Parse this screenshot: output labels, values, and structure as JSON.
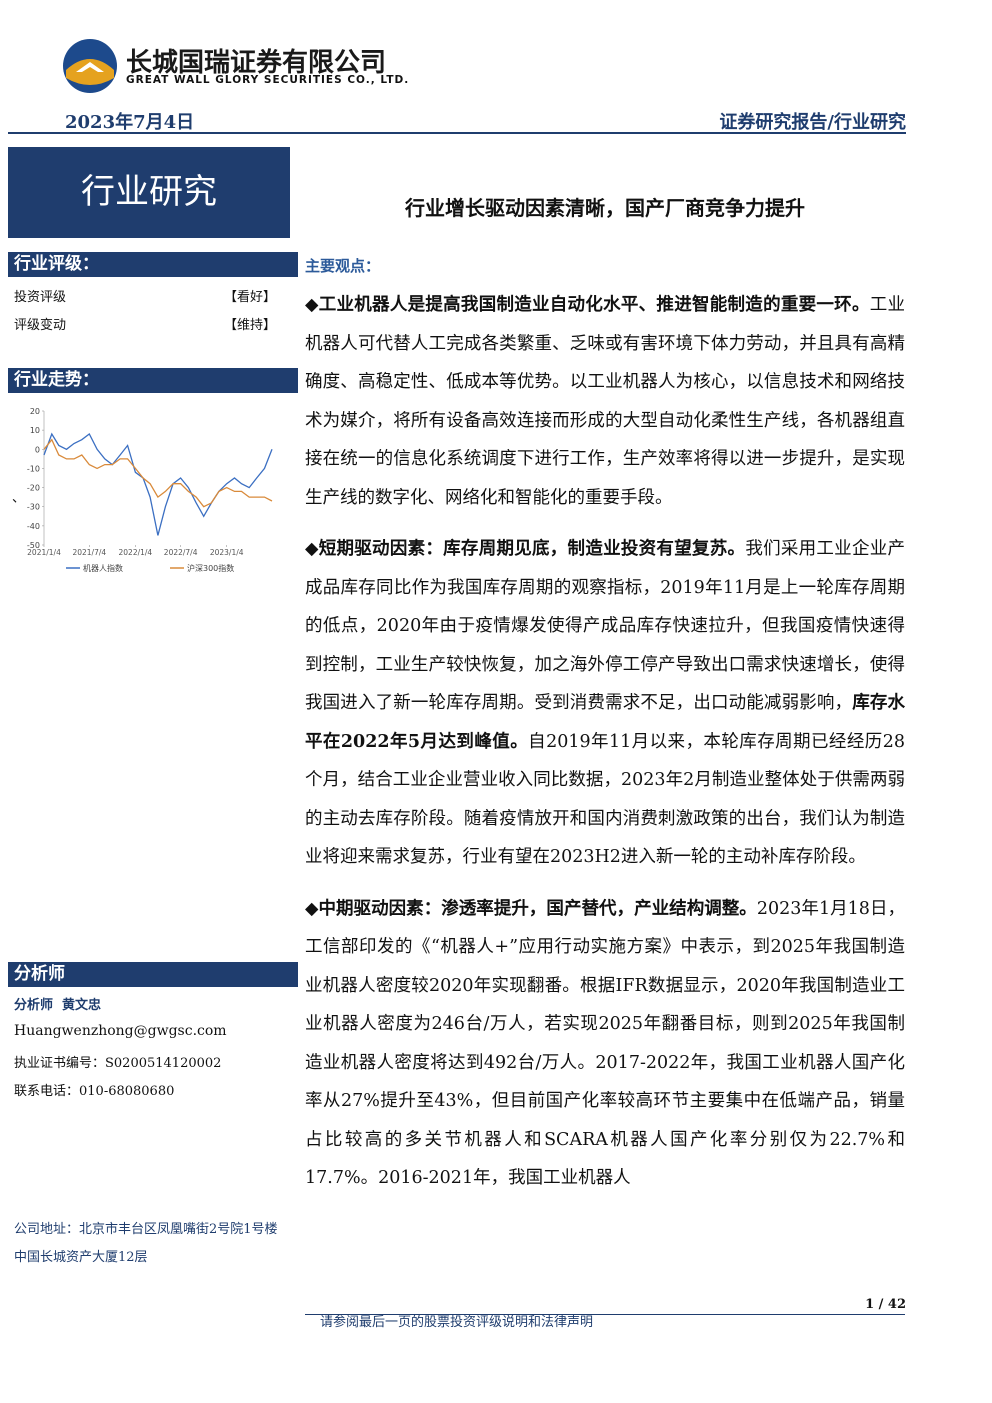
{
  "header": {
    "company_cn": "长城国瑞证券有限公司",
    "company_en": "GREAT WALL GLORY SECURITIES CO., LTD.",
    "date": "2023年7月4日",
    "report_type": "证券研究报告/行业研究"
  },
  "banner": "行业研究",
  "title": "行业增长驱动因素清晰，国产厂商竞争力提升",
  "rating": {
    "heading": "行业评级：",
    "rows": [
      [
        "投资评级",
        "【看好】"
      ],
      [
        "评级变动",
        "【维持】"
      ]
    ]
  },
  "trend": {
    "heading": "行业走势：",
    "stray_mark": "、",
    "chart": {
      "type": "line",
      "x": [
        "2021/1/4",
        "2021/2/4",
        "2021/3/4",
        "2021/4/4",
        "2021/5/4",
        "2021/6/4",
        "2021/7/4",
        "2021/8/4",
        "2021/9/4",
        "2021/10/4",
        "2021/11/4",
        "2021/12/4",
        "2022/1/4",
        "2022/2/4",
        "2022/3/4",
        "2022/4/4",
        "2022/5/4",
        "2022/6/4",
        "2022/7/4",
        "2022/8/4",
        "2022/9/4",
        "2022/10/4",
        "2022/11/4",
        "2022/12/4",
        "2023/1/4",
        "2023/2/4",
        "2023/3/4",
        "2023/4/4",
        "2023/5/4",
        "2023/6/4",
        "2023/7/4"
      ],
      "series": [
        {
          "name": "机器人指数",
          "color": "#3b6fc2",
          "values": [
            -3,
            8,
            2,
            0,
            3,
            5,
            8,
            0,
            -5,
            -8,
            -3,
            2,
            -12,
            -15,
            -25,
            -45,
            -30,
            -18,
            -15,
            -20,
            -28,
            -35,
            -28,
            -22,
            -18,
            -15,
            -18,
            -20,
            -15,
            -10,
            0
          ]
        },
        {
          "name": "沪深300指数",
          "color": "#d98a3a",
          "values": [
            0,
            5,
            -3,
            -5,
            -5,
            -3,
            -8,
            -10,
            -8,
            -8,
            -5,
            -5,
            -10,
            -15,
            -18,
            -25,
            -22,
            -18,
            -18,
            -22,
            -25,
            -30,
            -28,
            -22,
            -20,
            -22,
            -22,
            -25,
            -25,
            -25,
            -27
          ]
        }
      ],
      "xlim": [
        "2021/1/4",
        "2023/7/4"
      ],
      "xticks": [
        "2021/1/4",
        "2021/7/4",
        "2022/1/4",
        "2022/7/4",
        "2023/1/4"
      ],
      "ylim": [
        -50,
        20
      ],
      "yticks": [
        20,
        10,
        0,
        -10,
        -20,
        -30,
        -40,
        -50
      ]
    }
  },
  "analyst": {
    "heading": "分析师",
    "name": "分析师  黄文忠",
    "email": "Huangwenzhong@gwgsc.com",
    "license": "执业证书编号：S0200514120002",
    "phone": "联系电话：010-68080680"
  },
  "address": "公司地址：北京市丰台区凤凰嘴街2号院1号楼中国长城资产大厦12层",
  "main_points": {
    "heading": "主要观点：",
    "paragraphs": [
      {
        "segments": [
          {
            "text": "◆工业机器人是提高我国制造业自动化水平、推进智能制造的重要一环。",
            "bold": true
          },
          {
            "text": "工业机器人可代替人工完成各类繁重、乏味或有害环境下体力劳动，并且具有高精确度、高稳定性、低成本等优势。以工业机器人为核心，以信息技术和网络技术为媒介，将所有设备高效连接而形成的大型自动化柔性生产线，各机器组直接在统一的信息化系统调度下进行工作，生产效率将得以进一步提升，是实现生产线的数字化、网络化和智能化的重要手段。",
            "bold": false
          }
        ]
      },
      {
        "segments": [
          {
            "text": "◆短期驱动因素：库存周期见底，制造业投资有望复苏。",
            "bold": true
          },
          {
            "text": "我们采用工业企业产成品库存同比作为我国库存周期的观察指标，2019年11月是上一轮库存周期的低点，2020年由于疫情爆发使得产成品库存快速拉升，但我国疫情快速得到控制，工业生产较快恢复，加之海外停工停产导致出口需求快速增长，使得我国进入了新一轮库存周期。受到消费需求不足，出口动能减弱影响，",
            "bold": false
          },
          {
            "text": "库存水平在2022年5月达到峰值。",
            "bold": true
          },
          {
            "text": "自2019年11月以来，本轮库存周期已经经历28个月，结合工业企业营业收入同比数据，2023年2月制造业整体处于供需两弱的主动去库存阶段。随着疫情放开和国内消费刺激政策的出台，我们认为制造业将迎来需求复苏，行业有望在2023H2进入新一轮的主动补库存阶段。",
            "bold": false
          }
        ]
      },
      {
        "segments": [
          {
            "text": "◆中期驱动因素：渗透率提升，国产替代，产业结构调整。",
            "bold": true
          },
          {
            "text": "2023年1月18日，工信部印发的《“机器人+”应用行动实施方案》中表示，到2025年我国制造业机器人密度较2020年实现翻番。根据IFR数据显示，2020年我国制造业工业机器人密度为246台/万人，若实现2025年翻番目标，则到2025年我国制造业机器人密度将达到492台/万人。2017-2022年，我国工业机器人国产化率从27%提升至43%，但目前国产化率较高环节主要集中在低端产品，销量占比较高的多关节机器人和SCARA机器人国产化率分别仅为22.7%和17.7%。2016-2021年，我国工业机器人",
            "bold": false
          }
        ]
      }
    ]
  },
  "footer": {
    "page": "1 / 42",
    "disclaimer": "请参阅最后一页的股票投资评级说明和法律声明"
  }
}
